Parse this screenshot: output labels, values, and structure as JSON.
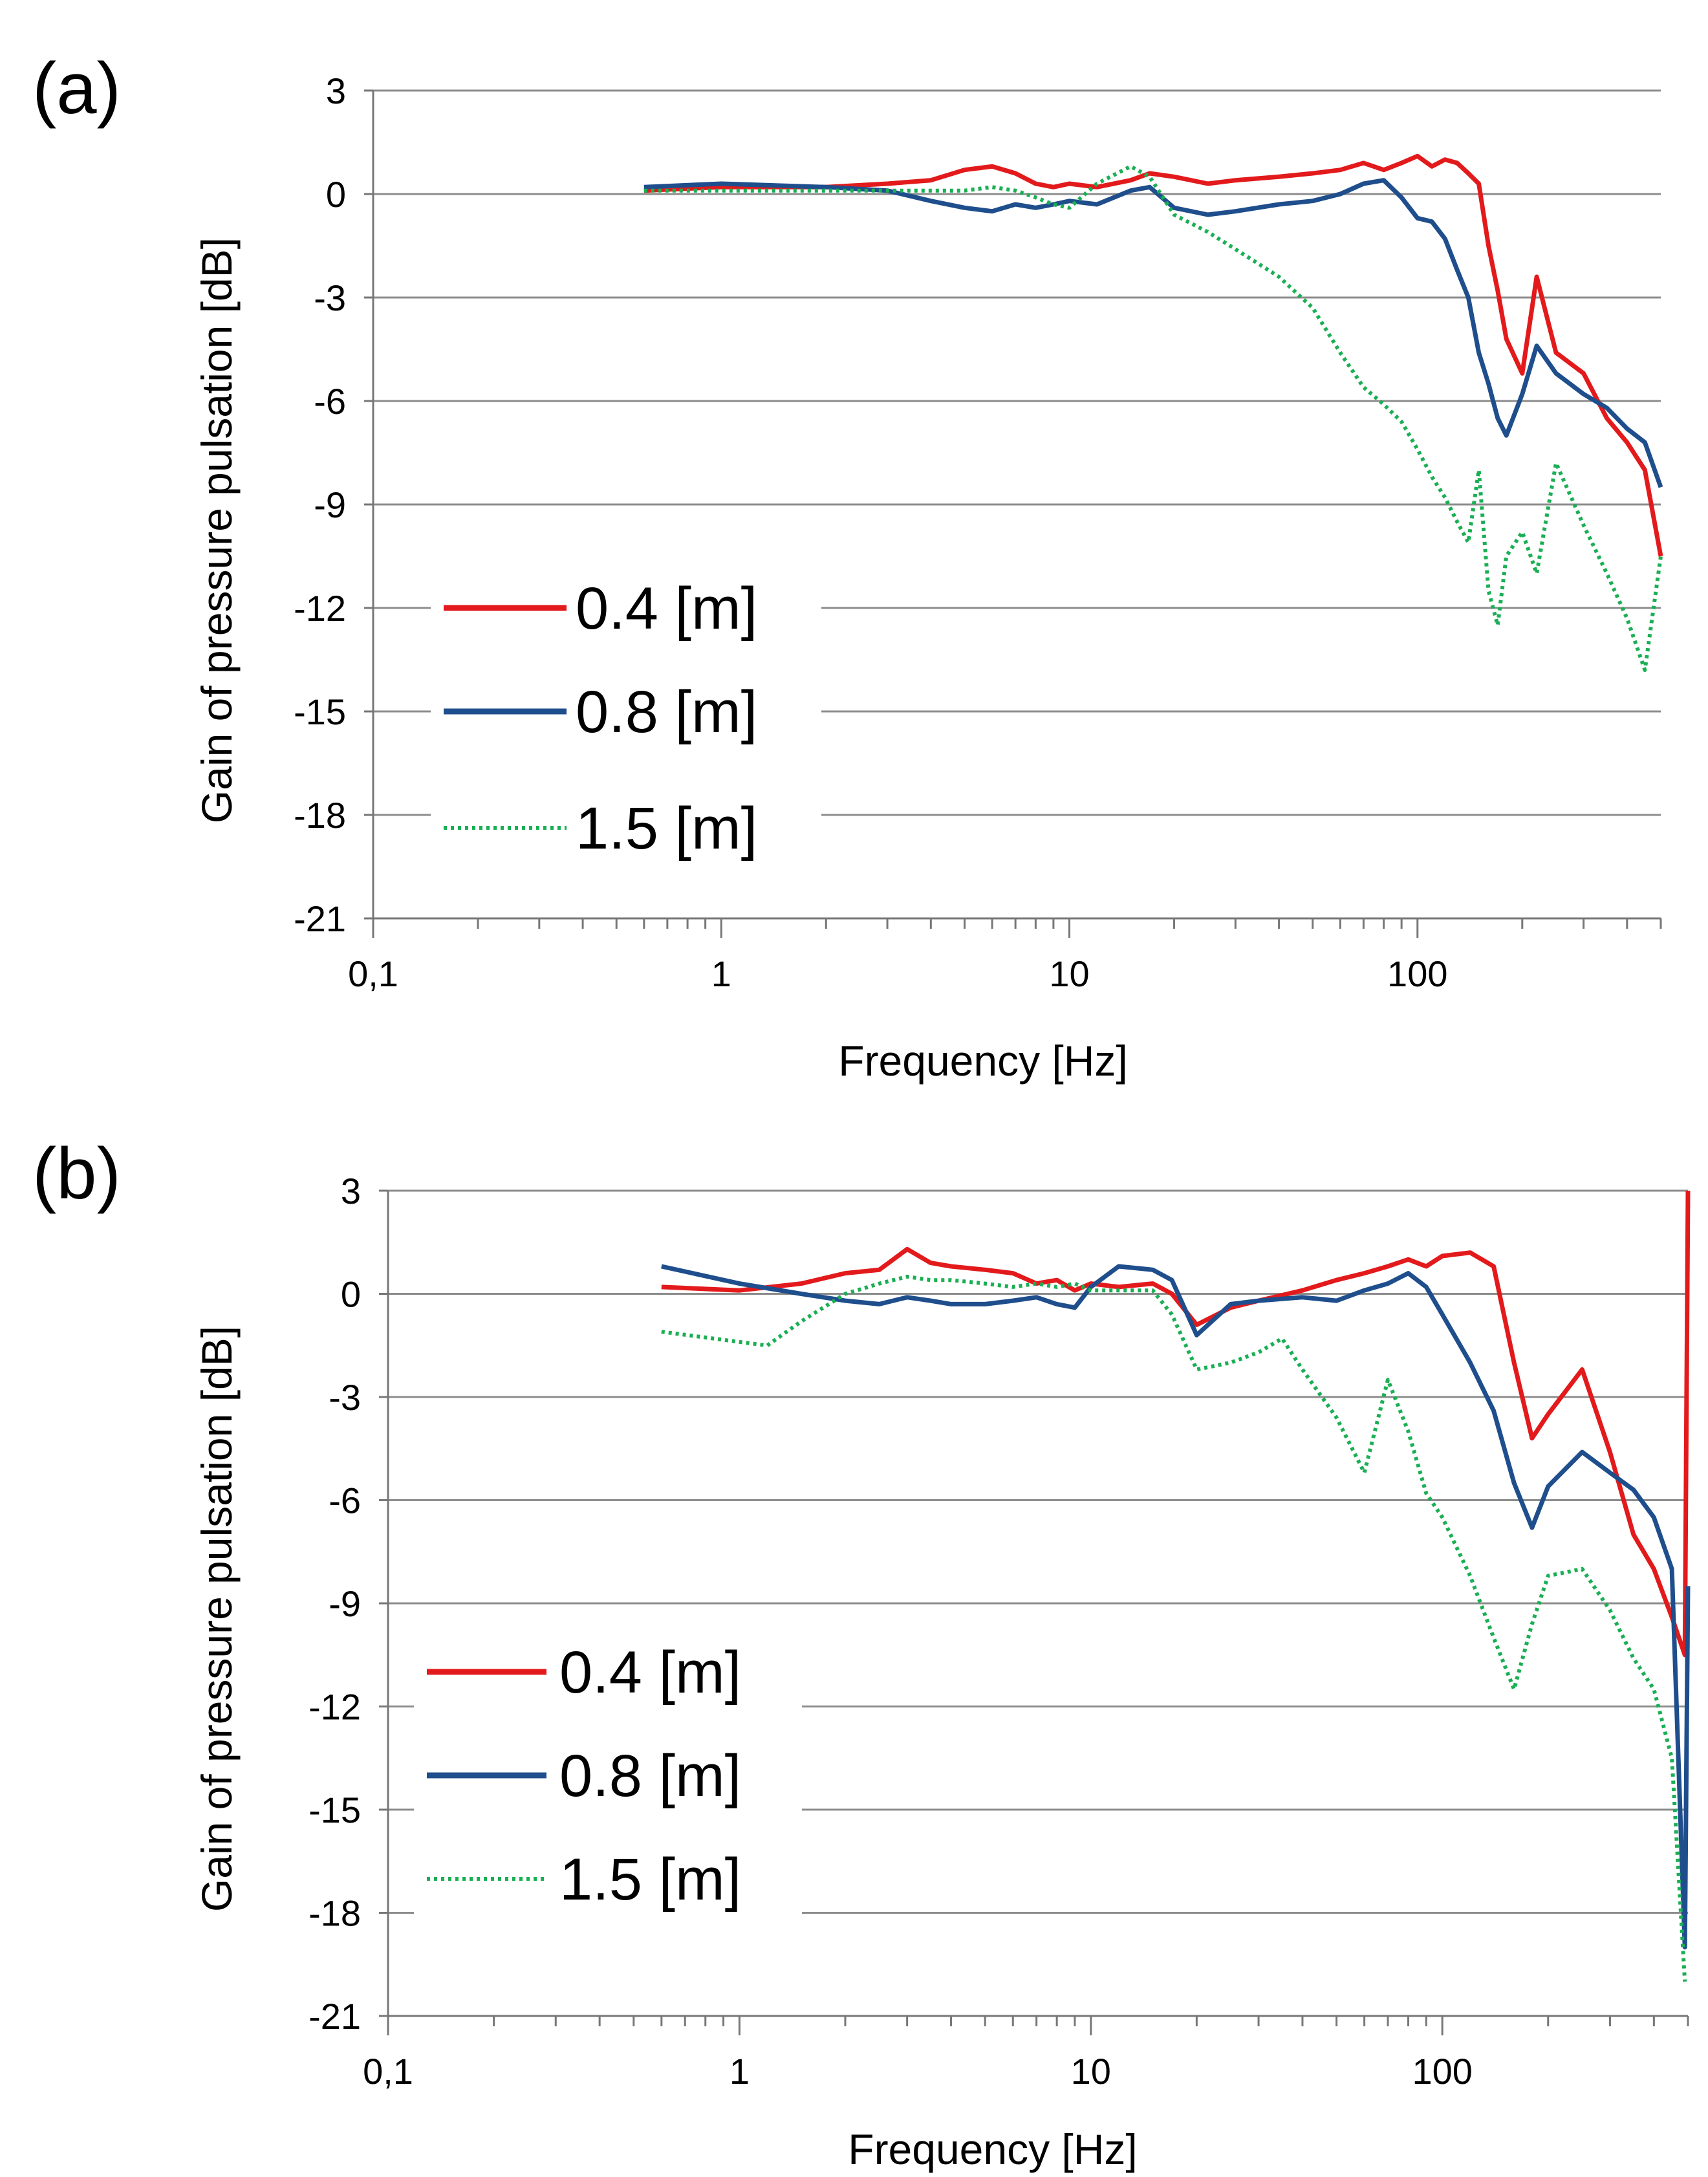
{
  "chart_data": [
    {
      "type": "line",
      "panel_label": "(a)",
      "xlabel": "Frequency [Hz]",
      "ylabel": "Gain of pressure pulsation [dB]",
      "xscale": "log",
      "xlim": [
        0.1,
        500
      ],
      "ylim": [
        -21,
        3
      ],
      "xticks": [
        0.1,
        1,
        10,
        100
      ],
      "xtick_labels": [
        "0,1",
        "1",
        "10",
        "100"
      ],
      "yticks": [
        3,
        0,
        -3,
        -6,
        -9,
        -12,
        -15,
        -18,
        -21
      ],
      "ytick_labels": [
        "3",
        "0",
        "-3",
        "-6",
        "-9",
        "-12",
        "-15",
        "-18",
        "-21"
      ],
      "grid": true,
      "legend_position": "bottom-left",
      "series": [
        {
          "name": "0.4 [m]",
          "color": "#e31a1c",
          "style": "solid",
          "x": [
            0.6,
            1,
            2,
            3,
            4,
            5,
            6,
            7,
            8,
            9,
            10,
            12,
            15,
            17,
            20,
            25,
            30,
            40,
            50,
            60,
            70,
            80,
            90,
            100,
            110,
            120,
            130,
            140,
            150,
            160,
            170,
            180,
            200,
            220,
            250,
            300,
            350,
            400,
            450,
            500
          ],
          "y": [
            0.1,
            0.2,
            0.2,
            0.3,
            0.4,
            0.7,
            0.8,
            0.6,
            0.3,
            0.2,
            0.3,
            0.2,
            0.4,
            0.6,
            0.5,
            0.3,
            0.4,
            0.5,
            0.6,
            0.7,
            0.9,
            0.7,
            0.9,
            1.1,
            0.8,
            1.0,
            0.9,
            0.6,
            0.3,
            -1.5,
            -2.8,
            -4.2,
            -5.2,
            -2.4,
            -4.6,
            -5.2,
            -6.5,
            -7.2,
            -8.0,
            -10.5
          ]
        },
        {
          "name": "0.8 [m]",
          "color": "#1f4e8c",
          "style": "solid",
          "x": [
            0.6,
            1,
            2,
            3,
            4,
            5,
            6,
            7,
            8,
            9,
            10,
            12,
            15,
            17,
            20,
            25,
            30,
            40,
            50,
            60,
            70,
            80,
            90,
            100,
            110,
            120,
            130,
            140,
            150,
            160,
            170,
            180,
            200,
            220,
            250,
            300,
            350,
            400,
            450,
            500
          ],
          "y": [
            0.2,
            0.3,
            0.2,
            0.1,
            -0.2,
            -0.4,
            -0.5,
            -0.3,
            -0.4,
            -0.3,
            -0.2,
            -0.3,
            0.1,
            0.2,
            -0.4,
            -0.6,
            -0.5,
            -0.3,
            -0.2,
            0.0,
            0.3,
            0.4,
            -0.1,
            -0.7,
            -0.8,
            -1.3,
            -2.2,
            -3.0,
            -4.6,
            -5.5,
            -6.5,
            -7.0,
            -5.8,
            -4.4,
            -5.2,
            -5.8,
            -6.2,
            -6.8,
            -7.2,
            -8.5
          ]
        },
        {
          "name": "1.5 [m]",
          "color": "#1aaf54",
          "style": "dotted",
          "x": [
            0.6,
            1,
            2,
            3,
            4,
            5,
            6,
            7,
            8,
            9,
            10,
            12,
            15,
            17,
            20,
            25,
            30,
            40,
            50,
            60,
            70,
            80,
            90,
            100,
            110,
            120,
            130,
            140,
            150,
            160,
            170,
            180,
            200,
            220,
            250,
            300,
            350,
            400,
            450,
            500
          ],
          "y": [
            0.1,
            0.1,
            0.1,
            0.1,
            0.1,
            0.1,
            0.2,
            0.1,
            -0.1,
            -0.3,
            -0.4,
            0.3,
            0.8,
            0.5,
            -0.6,
            -1.1,
            -1.6,
            -2.4,
            -3.3,
            -4.6,
            -5.6,
            -6.1,
            -6.6,
            -7.4,
            -8.2,
            -8.8,
            -9.5,
            -10.1,
            -8.0,
            -11.5,
            -12.5,
            -10.5,
            -9.8,
            -11.0,
            -7.8,
            -9.6,
            -11.0,
            -12.3,
            -13.8,
            -10.5
          ]
        }
      ]
    },
    {
      "type": "line",
      "panel_label": "(b)",
      "xlabel": "Frequency [Hz]",
      "ylabel": "Gain of pressure pulsation [dB]",
      "xscale": "log",
      "xlim": [
        0.1,
        500
      ],
      "ylim": [
        -21,
        3
      ],
      "xticks": [
        0.1,
        1,
        10,
        100
      ],
      "xtick_labels": [
        "0,1",
        "1",
        "10",
        "100"
      ],
      "yticks": [
        3,
        0,
        -3,
        -6,
        -9,
        -12,
        -15,
        -18,
        -21
      ],
      "ytick_labels": [
        "3",
        "0",
        "-3",
        "-6",
        "-9",
        "-12",
        "-15",
        "-18",
        "-21"
      ],
      "grid": true,
      "legend_position": "bottom-left",
      "series": [
        {
          "name": "0.4 [m]",
          "color": "#e31a1c",
          "style": "solid",
          "x": [
            0.6,
            1,
            1.5,
            2,
            2.5,
            3,
            3.5,
            4,
            5,
            6,
            7,
            8,
            9,
            10,
            12,
            15,
            17,
            20,
            25,
            30,
            40,
            50,
            60,
            70,
            80,
            90,
            100,
            120,
            140,
            160,
            180,
            200,
            250,
            300,
            350,
            400,
            450,
            490,
            500
          ],
          "y": [
            0.2,
            0.1,
            0.3,
            0.6,
            0.7,
            1.3,
            0.9,
            0.8,
            0.7,
            0.6,
            0.3,
            0.4,
            0.1,
            0.3,
            0.2,
            0.3,
            0.0,
            -0.9,
            -0.4,
            -0.2,
            0.1,
            0.4,
            0.6,
            0.8,
            1.0,
            0.8,
            1.1,
            1.2,
            0.8,
            -2.0,
            -4.2,
            -3.5,
            -2.2,
            -4.6,
            -7.0,
            -8.0,
            -9.4,
            -10.5,
            3.0
          ]
        },
        {
          "name": "0.8 [m]",
          "color": "#1f4e8c",
          "style": "solid",
          "x": [
            0.6,
            1,
            1.5,
            2,
            2.5,
            3,
            3.5,
            4,
            5,
            6,
            7,
            8,
            9,
            10,
            12,
            15,
            17,
            20,
            25,
            30,
            40,
            50,
            60,
            70,
            80,
            90,
            100,
            120,
            140,
            160,
            180,
            200,
            250,
            300,
            350,
            400,
            450,
            490,
            500
          ],
          "y": [
            0.8,
            0.3,
            0.0,
            -0.2,
            -0.3,
            -0.1,
            -0.2,
            -0.3,
            -0.3,
            -0.2,
            -0.1,
            -0.3,
            -0.4,
            0.2,
            0.8,
            0.7,
            0.4,
            -1.2,
            -0.3,
            -0.2,
            -0.1,
            -0.2,
            0.1,
            0.3,
            0.6,
            0.2,
            -0.6,
            -2.0,
            -3.4,
            -5.5,
            -6.8,
            -5.6,
            -4.6,
            -5.2,
            -5.7,
            -6.5,
            -8.0,
            -19.0,
            -8.5
          ]
        },
        {
          "name": "1.5 [m]",
          "color": "#1aaf54",
          "style": "dotted",
          "x": [
            0.6,
            1,
            1.2,
            1.5,
            2,
            2.5,
            3,
            3.5,
            4,
            5,
            6,
            7,
            8,
            9,
            10,
            12,
            15,
            17,
            20,
            25,
            30,
            35,
            40,
            50,
            60,
            70,
            80,
            90,
            100,
            120,
            140,
            160,
            180,
            200,
            250,
            300,
            350,
            400,
            450,
            490
          ],
          "y": [
            -1.1,
            -1.4,
            -1.5,
            -0.8,
            0.0,
            0.3,
            0.5,
            0.4,
            0.4,
            0.3,
            0.2,
            0.3,
            0.2,
            0.3,
            0.1,
            0.1,
            0.1,
            -0.6,
            -2.2,
            -2.0,
            -1.7,
            -1.3,
            -2.2,
            -3.6,
            -5.2,
            -2.5,
            -4.0,
            -5.8,
            -6.5,
            -8.2,
            -10.0,
            -11.5,
            -9.6,
            -8.2,
            -8.0,
            -9.2,
            -10.6,
            -11.5,
            -13.5,
            -20.0
          ]
        }
      ]
    }
  ]
}
